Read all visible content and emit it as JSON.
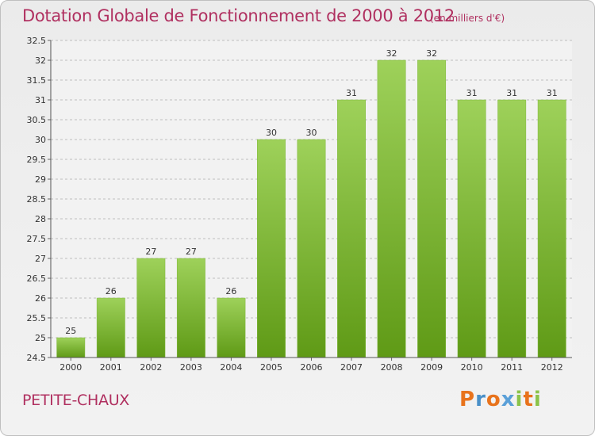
{
  "title": "Dotation Globale de Fonctionnement de 2000 à 2012",
  "unit_note": "(en milliers d'€)",
  "place_name": "PETITE-CHAUX",
  "logo": {
    "text": "Proxiti",
    "letters": [
      {
        "ch": "P",
        "color": "#e8731c"
      },
      {
        "ch": "r",
        "color": "#4a90c8"
      },
      {
        "ch": "o",
        "color": "#e8731c"
      },
      {
        "ch": "x",
        "color": "#5aa0d8"
      },
      {
        "ch": "i",
        "color": "#8bc34a"
      },
      {
        "ch": "t",
        "color": "#e8731c"
      },
      {
        "ch": "i",
        "color": "#8bc34a"
      }
    ]
  },
  "colors": {
    "bar_top": "#9ed15a",
    "bar_bottom": "#5f9a16",
    "title": "#b03060",
    "grid": "#bfbfbf"
  },
  "chart_data": {
    "type": "bar",
    "title": "Dotation Globale de Fonctionnement de 2000 à 2012",
    "xlabel": "",
    "ylabel": "",
    "categories": [
      "2000",
      "2001",
      "2002",
      "2003",
      "2004",
      "2005",
      "2006",
      "2007",
      "2008",
      "2009",
      "2010",
      "2011",
      "2012"
    ],
    "values": [
      25,
      26,
      27,
      27,
      26,
      30,
      30,
      31,
      32,
      32,
      31,
      31,
      31
    ],
    "ylim": [
      24.5,
      32.5
    ],
    "yticks": [
      "24.5",
      "25",
      "25.5",
      "26",
      "26.5",
      "27",
      "27.5",
      "28",
      "28.5",
      "29",
      "29.5",
      "30",
      "30.5",
      "31",
      "31.5",
      "32",
      "32.5"
    ],
    "grid": true,
    "grid_style": "dashed horizontal",
    "legend": "none"
  }
}
